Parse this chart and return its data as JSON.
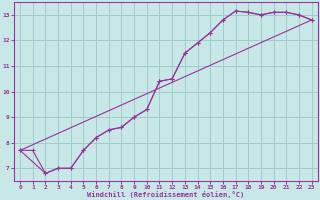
{
  "bg_color": "#c8e8e8",
  "line_color": "#993399",
  "grid_color": "#a0cccc",
  "xlabel": "Windchill (Refroidissement éolien,°C)",
  "xlim": [
    -0.5,
    23.5
  ],
  "ylim": [
    6.5,
    13.5
  ],
  "yticks": [
    7,
    8,
    9,
    10,
    11,
    12,
    13
  ],
  "xticks": [
    0,
    1,
    2,
    3,
    4,
    5,
    6,
    7,
    8,
    9,
    10,
    11,
    12,
    13,
    14,
    15,
    16,
    17,
    18,
    19,
    20,
    21,
    22,
    23
  ],
  "series1_x": [
    0,
    1,
    2,
    3,
    4,
    5,
    6,
    7,
    8,
    9,
    10,
    11,
    12,
    13,
    14,
    15,
    16,
    17,
    18,
    19,
    20,
    21,
    22,
    23
  ],
  "series1_y": [
    7.7,
    7.7,
    6.8,
    7.0,
    7.0,
    7.7,
    8.2,
    8.5,
    8.6,
    9.0,
    9.3,
    10.4,
    10.5,
    11.5,
    11.9,
    12.3,
    12.8,
    13.15,
    13.1,
    13.0,
    13.1,
    13.1,
    13.0,
    12.8
  ],
  "series2_x": [
    0,
    23
  ],
  "series2_y": [
    7.7,
    12.8
  ],
  "series3_x": [
    0,
    1,
    2,
    3,
    4,
    5,
    6,
    7,
    8,
    9,
    10,
    11,
    12,
    13,
    14,
    15,
    16,
    17,
    18,
    19,
    20,
    21,
    22,
    23
  ],
  "series3_y": [
    7.7,
    7.7,
    6.8,
    7.0,
    7.0,
    7.7,
    8.2,
    8.5,
    8.6,
    9.0,
    9.3,
    10.4,
    10.5,
    11.5,
    11.9,
    12.3,
    12.8,
    13.15,
    13.1,
    13.0,
    13.1,
    13.1,
    13.0,
    12.8
  ]
}
